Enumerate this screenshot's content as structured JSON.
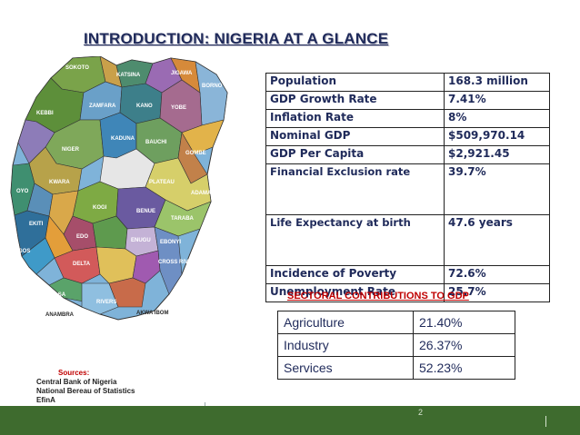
{
  "slide": {
    "title": "INTRODUCTION: NIGERIA AT A GLANCE",
    "page_number": "2"
  },
  "stats": [
    {
      "label": "Population",
      "value": "168.3 million"
    },
    {
      "label": "GDP Growth Rate",
      "value": "7.41%"
    },
    {
      "label": "Inflation Rate",
      "value": "8%"
    },
    {
      "label": "Nominal GDP",
      "value": "$509,970.14"
    },
    {
      "label": "GDP Per Capita",
      "value": "$2,921.45"
    },
    {
      "label": "Financial Exclusion rate",
      "value": "39.7%"
    },
    {
      "label": "Life Expectancy at birth",
      "value": "47.6 years"
    },
    {
      "label": "Incidence of Poverty",
      "value": "72.6%"
    },
    {
      "label": "Unemployment Rate",
      "value": "25.7%"
    }
  ],
  "sectoral": {
    "title": "SECTORAL CONTRIBUTIONS TO GDP",
    "rows": [
      {
        "label": "Agriculture",
        "value": "21.40%"
      },
      {
        "label": "Industry",
        "value": "26.37%"
      },
      {
        "label": "Services",
        "value": "52.23%"
      }
    ]
  },
  "sources": {
    "heading": "Sources:",
    "items": [
      "Central Bank of Nigeria",
      "National Bereau of Statistics",
      "EfinA"
    ]
  },
  "map": {
    "states": [
      "SOKOTO",
      "ZAMFARA",
      "KATSINA",
      "KANO",
      "JIGAWA",
      "YOBE",
      "BORNO",
      "KEBBI",
      "NIGER",
      "KADUNA",
      "BAUCHI",
      "GOMBE",
      "ADAMAWA",
      "KWARA",
      "PLATEAU",
      "OYO",
      "KOGI",
      "BENUE",
      "TARABA",
      "EKITI",
      "EDO",
      "ENUGU",
      "EBONYI",
      "LAGOS",
      "DELTA",
      "CROSS RIVER",
      "BAYELSA",
      "RIVERS",
      "AKWA IBOM",
      "ANAMBRA"
    ]
  },
  "colors": {
    "title": "#1f2a5a",
    "accent_red": "#c00000",
    "footer_green": "#3e6b2e"
  }
}
